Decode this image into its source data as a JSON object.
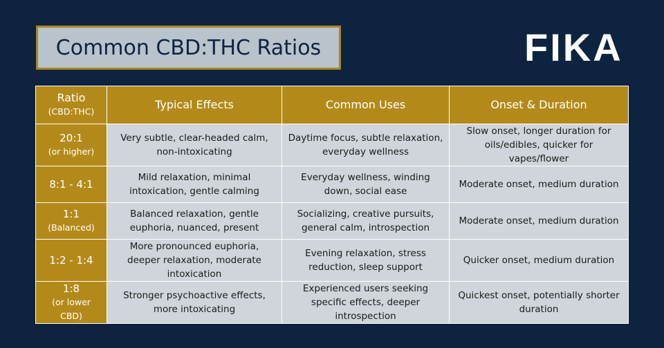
{
  "header": {
    "title": "Common CBD:THC Ratios",
    "logo": "FIKA"
  },
  "table": {
    "columns": [
      "Ratio",
      "Typical Effects",
      "Common Uses",
      "Onset & Duration"
    ],
    "column_note": "(CBD:THC)",
    "rows": [
      {
        "ratio": "20:1",
        "note": "(or higher)",
        "effects": "Very subtle, clear-headed calm, non-intoxicating",
        "uses": "Daytime focus, subtle relaxation, everyday wellness",
        "onset": "Slow onset, longer duration for oils/edibles, quicker for vapes/flower"
      },
      {
        "ratio": "8:1 - 4:1",
        "effects": "Mild relaxation, minimal intoxication, gentle calming",
        "uses": "Everyday wellness, winding down, social ease",
        "onset": "Moderate onset, medium duration"
      },
      {
        "ratio": "1:1",
        "note": "(Balanced)",
        "effects": "Balanced relaxation, gentle euphoria, nuanced, present",
        "uses": "Socializing, creative pursuits, general calm, introspection",
        "onset": "Moderate onset, medium duration"
      },
      {
        "ratio": "1:2 - 1:4",
        "effects": "More pronounced euphoria, deeper relaxation, moderate intoxication",
        "uses": "Evening relaxation, stress reduction, sleep support",
        "onset": "Quicker onset, medium duration"
      },
      {
        "ratio": "1:8",
        "note": "(or lower CBD)",
        "effects": "Stronger psychoactive effects, more intoxicating",
        "uses": "Experienced users seeking specific effects, deeper introspection",
        "onset": "Quickest onset, potentially shorter duration"
      }
    ]
  }
}
